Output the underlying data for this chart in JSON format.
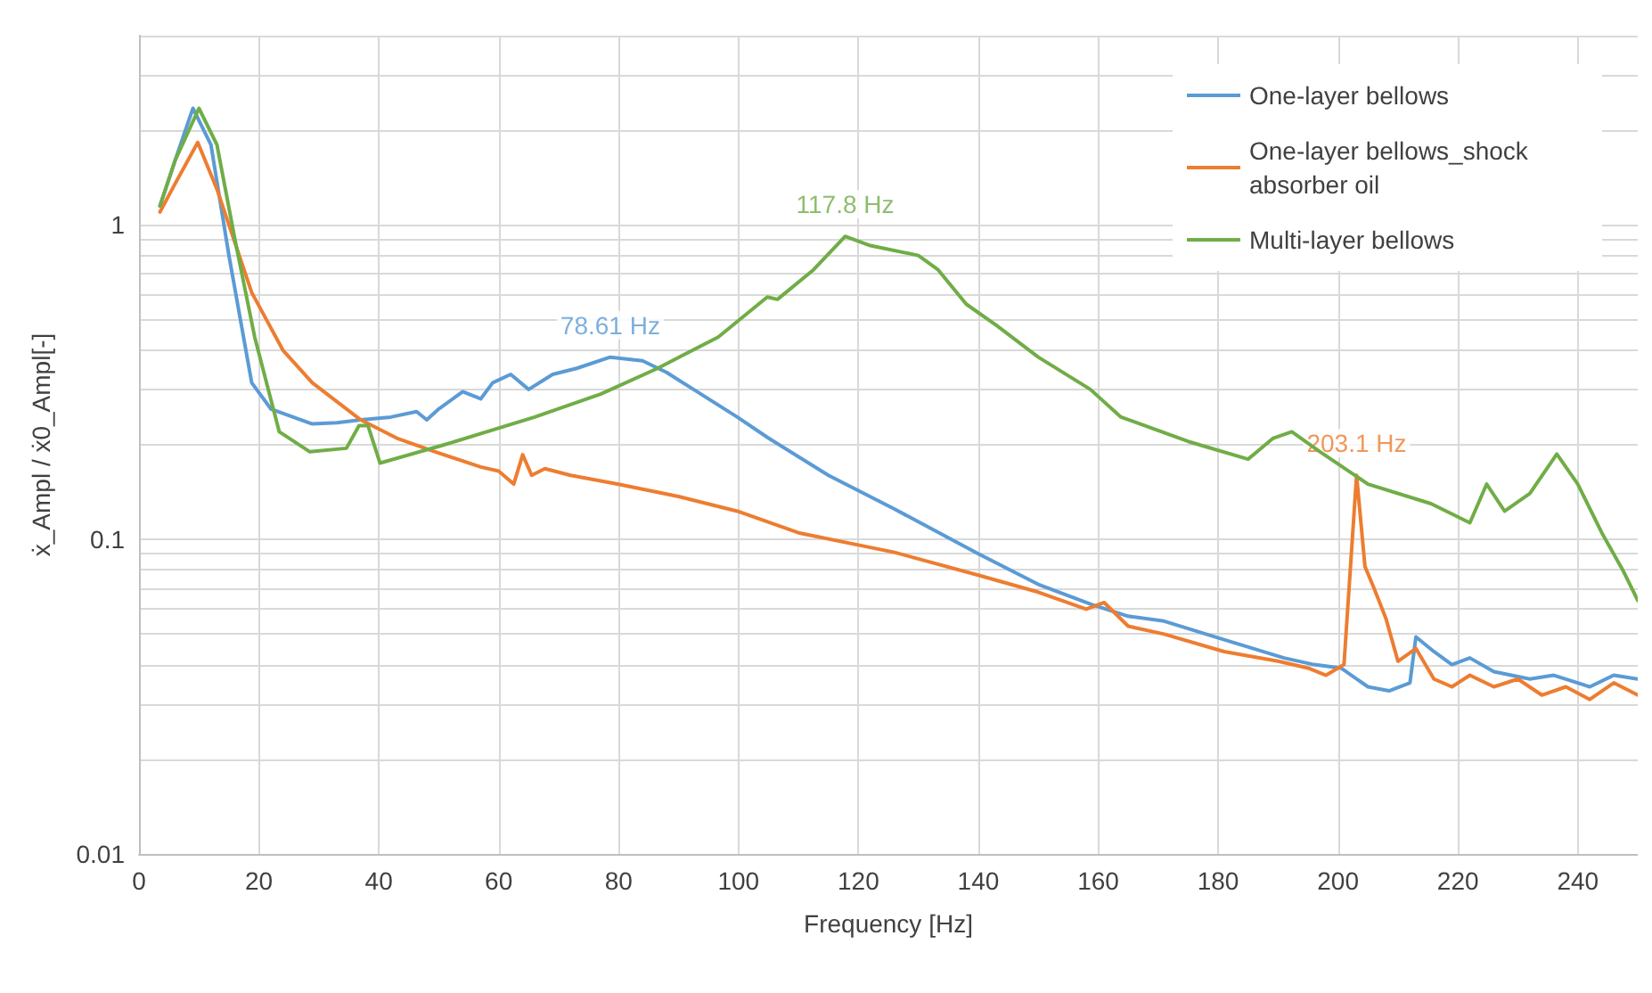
{
  "chart_data": {
    "type": "line",
    "xlabel": "Frequency [Hz]",
    "ylabel": "ẋ_Ampl / ẋ0_Ampl[-]",
    "log": "y",
    "grid": true,
    "legend": "top right",
    "marker": "none",
    "line_style": "solid",
    "xlim": [
      0,
      250
    ],
    "xticks": [
      0,
      20,
      40,
      60,
      80,
      100,
      120,
      140,
      160,
      180,
      200,
      220,
      240
    ],
    "ylim": [
      0.01,
      4
    ],
    "yticks": [
      0.01,
      {
        "value": 0.02,
        "label": null
      },
      {
        "value": 0.03,
        "label": null
      },
      {
        "value": 0.04,
        "label": null
      },
      {
        "value": 0.05,
        "label": null
      },
      {
        "value": 0.06,
        "label": null
      },
      {
        "value": 0.07,
        "label": null
      },
      {
        "value": 0.08,
        "label": null
      },
      {
        "value": 0.09,
        "label": null
      },
      0.1,
      {
        "value": 0.2,
        "label": null
      },
      {
        "value": 0.3,
        "label": null
      },
      {
        "value": 0.4,
        "label": null
      },
      {
        "value": 0.5,
        "label": null
      },
      {
        "value": 0.6,
        "label": null
      },
      {
        "value": 0.7,
        "label": null
      },
      {
        "value": 0.8,
        "label": null
      },
      {
        "value": 0.9,
        "label": null
      },
      1,
      {
        "value": 2,
        "label": null
      },
      {
        "value": 3,
        "label": null
      },
      {
        "value": 4,
        "label": null
      }
    ],
    "series": [
      {
        "name": "One-layer bellows",
        "color": "#5b9bd5",
        "x": [
          3.5,
          6,
          9,
          12,
          15,
          18.8,
          22,
          28.9,
          33,
          37,
          42,
          46.3,
          48,
          50,
          54,
          57,
          59,
          62,
          65,
          69,
          73,
          78.61,
          84,
          88,
          92.5,
          99.8,
          105,
          115,
          126,
          140,
          150,
          159,
          165,
          171,
          181,
          191,
          196,
          200.5,
          205,
          208.5,
          212,
          213,
          216,
          219,
          222,
          226,
          232,
          236,
          242,
          246,
          250
        ],
        "values": [
          1.15,
          1.6,
          2.35,
          1.8,
          0.8,
          0.315,
          0.26,
          0.233,
          0.235,
          0.24,
          0.245,
          0.255,
          0.24,
          0.26,
          0.295,
          0.28,
          0.315,
          0.335,
          0.3,
          0.335,
          0.35,
          0.38,
          0.37,
          0.34,
          0.3,
          0.245,
          0.21,
          0.16,
          0.125,
          0.09,
          0.072,
          0.062,
          0.057,
          0.055,
          0.048,
          0.042,
          0.04,
          0.039,
          0.034,
          0.033,
          0.035,
          0.049,
          0.044,
          0.04,
          0.042,
          0.038,
          0.036,
          0.037,
          0.034,
          0.037,
          0.036
        ]
      },
      {
        "name": "One-layer bellows_shock absorber oil",
        "color": "#ed7d31",
        "x": [
          3.5,
          6,
          9.8,
          13,
          18.8,
          24,
          28.9,
          37,
          43,
          49.4,
          57,
          60,
          62.5,
          64,
          65.5,
          67.7,
          72,
          79.8,
          90,
          99.8,
          110,
          126,
          140,
          150,
          158,
          161,
          165,
          171,
          181,
          190,
          195,
          198,
          201,
          203.1,
          204.5,
          206,
          208,
          210,
          213,
          216,
          219,
          222,
          226,
          230,
          234,
          238,
          242,
          246,
          250
        ],
        "values": [
          1.1,
          1.35,
          1.83,
          1.3,
          0.61,
          0.4,
          0.315,
          0.24,
          0.21,
          0.19,
          0.17,
          0.165,
          0.15,
          0.186,
          0.16,
          0.168,
          0.16,
          0.15,
          0.137,
          0.123,
          0.105,
          0.091,
          0.077,
          0.068,
          0.06,
          0.063,
          0.053,
          0.05,
          0.044,
          0.041,
          0.039,
          0.037,
          0.04,
          0.16,
          0.082,
          0.07,
          0.056,
          0.041,
          0.045,
          0.036,
          0.034,
          0.037,
          0.034,
          0.036,
          0.032,
          0.034,
          0.031,
          0.035,
          0.032
        ]
      },
      {
        "name": "Multi-layer bellows",
        "color": "#70ad47",
        "x": [
          3.5,
          6,
          10,
          13,
          16,
          19.3,
          23.4,
          28.5,
          34.6,
          36.7,
          38.2,
          40.2,
          50.9,
          66,
          77,
          86.5,
          96.6,
          104.8,
          106.5,
          112.5,
          117.8,
          122,
          130,
          133.3,
          138,
          143,
          150,
          158.7,
          163.8,
          175,
          185,
          189.2,
          192.3,
          197,
          205,
          215.5,
          222,
          224.8,
          227.8,
          232,
          236.5,
          240,
          244,
          247.5,
          250
        ],
        "values": [
          1.15,
          1.6,
          2.35,
          1.8,
          0.9,
          0.44,
          0.22,
          0.19,
          0.195,
          0.23,
          0.23,
          0.175,
          0.2,
          0.245,
          0.29,
          0.35,
          0.44,
          0.59,
          0.58,
          0.72,
          0.92,
          0.86,
          0.8,
          0.72,
          0.56,
          0.48,
          0.38,
          0.3,
          0.245,
          0.205,
          0.18,
          0.21,
          0.22,
          0.19,
          0.15,
          0.13,
          0.113,
          0.15,
          0.123,
          0.14,
          0.187,
          0.15,
          0.105,
          0.08,
          0.064
        ]
      }
    ],
    "annotations": [
      {
        "text": "78.61 Hz",
        "x": 78.61,
        "y": 0.38
      },
      {
        "text": "117.8 Hz",
        "x": 117.8,
        "y": 0.92
      },
      {
        "text": "203.1 Hz",
        "x": 203.1,
        "y": 0.16
      }
    ]
  }
}
